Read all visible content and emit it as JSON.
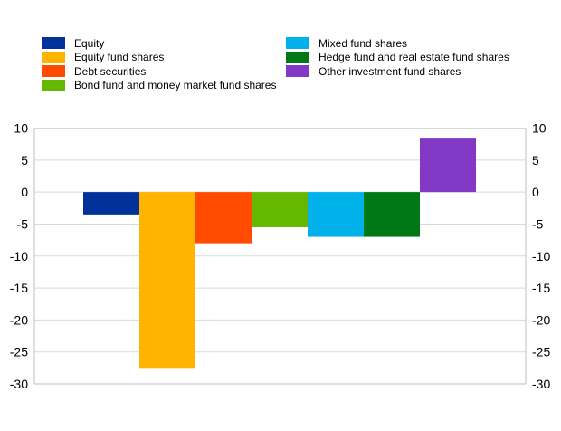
{
  "chart_data": {
    "type": "bar",
    "title": "",
    "xlabel": "",
    "ylabel": "",
    "ylim": [
      -30,
      10
    ],
    "yticks": [
      10,
      5,
      0,
      -5,
      -10,
      -15,
      -20,
      -25,
      -30
    ],
    "grid": true,
    "legend_position": "top",
    "series": [
      {
        "name": "Equity",
        "value": -3.5,
        "color": "#003299"
      },
      {
        "name": "Equity fund shares",
        "value": -27.5,
        "color": "#FFB400"
      },
      {
        "name": "Debt securities",
        "value": -8.0,
        "color": "#FF4B00"
      },
      {
        "name": "Bond fund and money market fund shares",
        "value": -5.5,
        "color": "#65B800"
      },
      {
        "name": "Mixed fund shares",
        "value": -7.0,
        "color": "#00B1EA"
      },
      {
        "name": "Hedge fund and real estate fund shares",
        "value": -7.0,
        "color": "#007816"
      },
      {
        "name": "Other investment fund shares",
        "value": 8.5,
        "color": "#8139C6"
      }
    ]
  }
}
